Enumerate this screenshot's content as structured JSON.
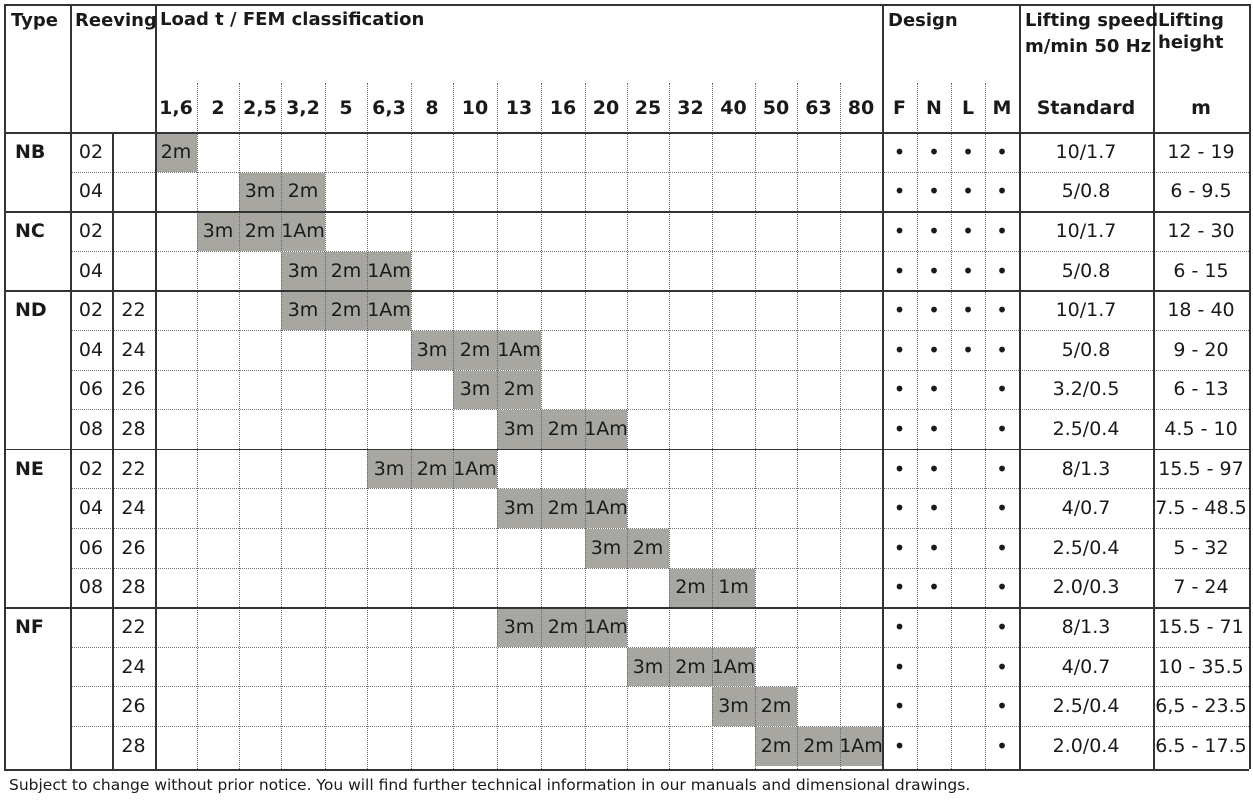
{
  "headers": {
    "type": "Type",
    "reeving": "Reeving",
    "load": "Load t / FEM classification",
    "design": "Design",
    "speed_line1": "Lifting speed",
    "speed_line2": "m/min 50 Hz",
    "height_line1": "Lifting",
    "height_line2": "height",
    "speed_sub": "Standard",
    "height_sub": "m"
  },
  "loads": [
    "1,6",
    "2",
    "2,5",
    "3,2",
    "5",
    "6,3",
    "8",
    "10",
    "13",
    "16",
    "20",
    "25",
    "32",
    "40",
    "50",
    "63",
    "80"
  ],
  "design_cols": [
    "F",
    "N",
    "L",
    "M"
  ],
  "dot_symbol": "•",
  "groups": [
    {
      "type": "NB",
      "rows": [
        {
          "r1": "02",
          "r2": "",
          "start": 0,
          "classes": [
            "2m"
          ],
          "design": [
            true,
            true,
            true,
            true
          ],
          "speed": "10/1.7",
          "height": "12 - 19"
        },
        {
          "r1": "04",
          "r2": "",
          "start": 2,
          "classes": [
            "3m",
            "2m"
          ],
          "design": [
            true,
            true,
            true,
            true
          ],
          "speed": "5/0.8",
          "height": "6 - 9.5"
        }
      ]
    },
    {
      "type": "NC",
      "rows": [
        {
          "r1": "02",
          "r2": "",
          "start": 1,
          "classes": [
            "3m",
            "2m",
            "1Am"
          ],
          "design": [
            true,
            true,
            true,
            true
          ],
          "speed": "10/1.7",
          "height": "12 - 30"
        },
        {
          "r1": "04",
          "r2": "",
          "start": 3,
          "classes": [
            "3m",
            "2m",
            "1Am"
          ],
          "design": [
            true,
            true,
            true,
            true
          ],
          "speed": "5/0.8",
          "height": "6 - 15"
        }
      ]
    },
    {
      "type": "ND",
      "rows": [
        {
          "r1": "02",
          "r2": "22",
          "start": 3,
          "classes": [
            "3m",
            "2m",
            "1Am"
          ],
          "design": [
            true,
            true,
            true,
            true
          ],
          "speed": "10/1.7",
          "height": "18 - 40"
        },
        {
          "r1": "04",
          "r2": "24",
          "start": 6,
          "classes": [
            "3m",
            "2m",
            "1Am"
          ],
          "design": [
            true,
            true,
            true,
            true
          ],
          "speed": "5/0.8",
          "height": "9 - 20"
        },
        {
          "r1": "06",
          "r2": "26",
          "start": 7,
          "classes": [
            "3m",
            "2m"
          ],
          "design": [
            true,
            true,
            false,
            true
          ],
          "speed": "3.2/0.5",
          "height": "6 - 13"
        },
        {
          "r1": "08",
          "r2": "28",
          "start": 8,
          "classes": [
            "3m",
            "2m",
            "1Am"
          ],
          "design": [
            true,
            true,
            false,
            true
          ],
          "speed": "2.5/0.4",
          "height": "4.5 - 10"
        }
      ]
    },
    {
      "type": "NE",
      "rows": [
        {
          "r1": "02",
          "r2": "22",
          "start": 5,
          "classes": [
            "3m",
            "2m",
            "1Am"
          ],
          "design": [
            true,
            true,
            false,
            true
          ],
          "speed": "8/1.3",
          "height": "15.5 - 97"
        },
        {
          "r1": "04",
          "r2": "24",
          "start": 8,
          "classes": [
            "3m",
            "2m",
            "1Am"
          ],
          "design": [
            true,
            true,
            false,
            true
          ],
          "speed": "4/0.7",
          "height": "7.5 - 48.5"
        },
        {
          "r1": "06",
          "r2": "26",
          "start": 10,
          "classes": [
            "3m",
            "2m"
          ],
          "design": [
            true,
            true,
            false,
            true
          ],
          "speed": "2.5/0.4",
          "height": "5 - 32"
        },
        {
          "r1": "08",
          "r2": "28",
          "start": 12,
          "classes": [
            "2m",
            "1m"
          ],
          "design": [
            true,
            true,
            false,
            true
          ],
          "speed": "2.0/0.3",
          "height": "7 - 24"
        }
      ]
    },
    {
      "type": "NF",
      "rows": [
        {
          "r1": "",
          "r2": "22",
          "start": 8,
          "classes": [
            "3m",
            "2m",
            "1Am"
          ],
          "design": [
            true,
            false,
            false,
            true
          ],
          "speed": "8/1.3",
          "height": "15.5 - 71"
        },
        {
          "r1": "",
          "r2": "24",
          "start": 11,
          "classes": [
            "3m",
            "2m",
            "1Am"
          ],
          "design": [
            true,
            false,
            false,
            true
          ],
          "speed": "4/0.7",
          "height": "10 - 35.5"
        },
        {
          "r1": "",
          "r2": "26",
          "start": 13,
          "classes": [
            "3m",
            "2m"
          ],
          "design": [
            true,
            false,
            false,
            true
          ],
          "speed": "2.5/0.4",
          "height": "6,5 - 23.5"
        },
        {
          "r1": "",
          "r2": "28",
          "start": 14,
          "classes": [
            "2m",
            "2m",
            "1Am"
          ],
          "design": [
            true,
            false,
            false,
            true
          ],
          "speed": "2.0/0.4",
          "height": "6.5 - 17.5"
        }
      ]
    }
  ],
  "footer": "Subject to change without prior notice. You will find further technical information in our manuals and dimensional drawings."
}
